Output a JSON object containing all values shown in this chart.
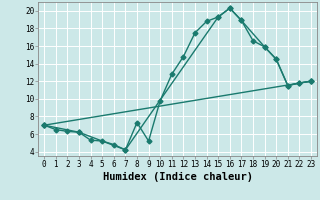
{
  "xlabel": "Humidex (Indice chaleur)",
  "bg_color": "#cce8e8",
  "grid_color": "#ffffff",
  "line_color": "#1a7a6e",
  "xlim": [
    -0.5,
    23.5
  ],
  "ylim": [
    3.5,
    21.0
  ],
  "xticks": [
    0,
    1,
    2,
    3,
    4,
    5,
    6,
    7,
    8,
    9,
    10,
    11,
    12,
    13,
    14,
    15,
    16,
    17,
    18,
    19,
    20,
    21,
    22,
    23
  ],
  "yticks": [
    4,
    6,
    8,
    10,
    12,
    14,
    16,
    18,
    20
  ],
  "line1_x": [
    0,
    1,
    2,
    3,
    4,
    5,
    6,
    7,
    8,
    9,
    10,
    11,
    12,
    13,
    14,
    15,
    16,
    17,
    18,
    19,
    20,
    21,
    22,
    23
  ],
  "line1_y": [
    7.0,
    6.5,
    6.3,
    6.2,
    5.3,
    5.2,
    4.8,
    4.2,
    7.3,
    5.2,
    9.8,
    12.8,
    14.8,
    17.5,
    18.8,
    19.3,
    20.3,
    18.9,
    16.6,
    15.9,
    14.5,
    11.5,
    11.8,
    12.0
  ],
  "line2_x": [
    0,
    3,
    7,
    15,
    16,
    17,
    19,
    20,
    21,
    22,
    23
  ],
  "line2_y": [
    7.0,
    6.2,
    4.2,
    19.3,
    20.3,
    18.9,
    15.9,
    14.5,
    11.5,
    11.8,
    12.0
  ],
  "line3_x": [
    0,
    23
  ],
  "line3_y": [
    7.0,
    12.0
  ],
  "marker_size": 2.5,
  "line_width": 1.0,
  "font_size_tick": 5.5,
  "font_size_label": 7.5
}
